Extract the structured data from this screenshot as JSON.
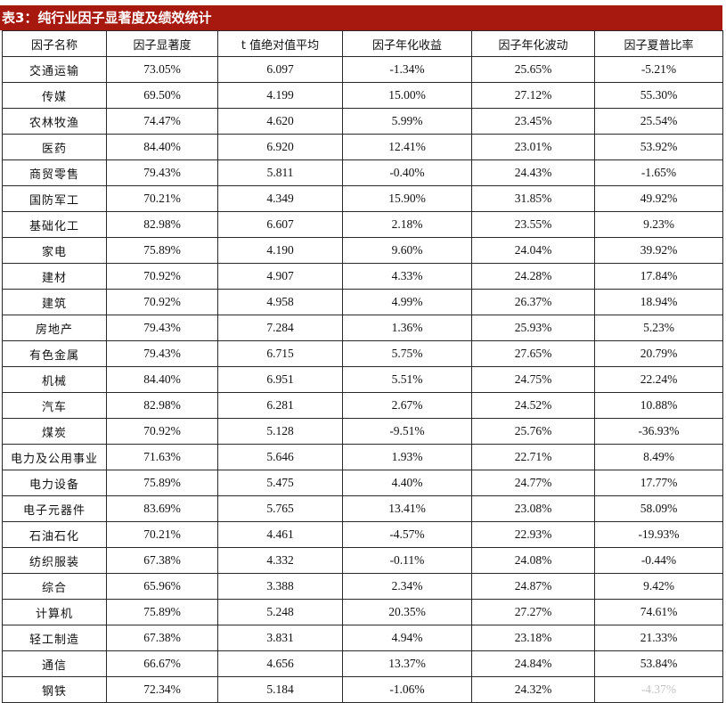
{
  "title": "表3：纯行业因子显著度及绩效统计",
  "headers": [
    "因子名称",
    "因子显著度",
    "t 值绝对值平均",
    "因子年化收益",
    "因子年化波动",
    "因子夏普比率"
  ],
  "rows": [
    [
      "交通运输",
      "73.05%",
      "6.097",
      "-1.34%",
      "25.65%",
      "-5.21%"
    ],
    [
      "传媒",
      "69.50%",
      "4.199",
      "15.00%",
      "27.12%",
      "55.30%"
    ],
    [
      "农林牧渔",
      "74.47%",
      "4.620",
      "5.99%",
      "23.45%",
      "25.54%"
    ],
    [
      "医药",
      "84.40%",
      "6.920",
      "12.41%",
      "23.01%",
      "53.92%"
    ],
    [
      "商贸零售",
      "79.43%",
      "5.811",
      "-0.40%",
      "24.43%",
      "-1.65%"
    ],
    [
      "国防军工",
      "70.21%",
      "4.349",
      "15.90%",
      "31.85%",
      "49.92%"
    ],
    [
      "基础化工",
      "82.98%",
      "6.607",
      "2.18%",
      "23.55%",
      "9.23%"
    ],
    [
      "家电",
      "75.89%",
      "4.190",
      "9.60%",
      "24.04%",
      "39.92%"
    ],
    [
      "建材",
      "70.92%",
      "4.907",
      "4.33%",
      "24.28%",
      "17.84%"
    ],
    [
      "建筑",
      "70.92%",
      "4.958",
      "4.99%",
      "26.37%",
      "18.94%"
    ],
    [
      "房地产",
      "79.43%",
      "7.284",
      "1.36%",
      "25.93%",
      "5.23%"
    ],
    [
      "有色金属",
      "79.43%",
      "6.715",
      "5.75%",
      "27.65%",
      "20.79%"
    ],
    [
      "机械",
      "84.40%",
      "6.951",
      "5.51%",
      "24.75%",
      "22.24%"
    ],
    [
      "汽车",
      "82.98%",
      "6.281",
      "2.67%",
      "24.52%",
      "10.88%"
    ],
    [
      "煤炭",
      "70.92%",
      "5.128",
      "-9.51%",
      "25.76%",
      "-36.93%"
    ],
    [
      "电力及公用事业",
      "71.63%",
      "5.646",
      "1.93%",
      "22.71%",
      "8.49%"
    ],
    [
      "电力设备",
      "75.89%",
      "5.475",
      "4.40%",
      "24.77%",
      "17.77%"
    ],
    [
      "电子元器件",
      "83.69%",
      "5.765",
      "13.41%",
      "23.08%",
      "58.09%"
    ],
    [
      "石油石化",
      "70.21%",
      "4.461",
      "-4.57%",
      "22.93%",
      "-19.93%"
    ],
    [
      "纺织服装",
      "67.38%",
      "4.332",
      "-0.11%",
      "24.08%",
      "-0.44%"
    ],
    [
      "综合",
      "65.96%",
      "3.388",
      "2.34%",
      "24.87%",
      "9.42%"
    ],
    [
      "计算机",
      "75.89%",
      "5.248",
      "20.35%",
      "27.27%",
      "74.61%"
    ],
    [
      "轻工制造",
      "67.38%",
      "3.831",
      "4.94%",
      "23.18%",
      "21.33%"
    ],
    [
      "通信",
      "66.67%",
      "4.656",
      "13.37%",
      "24.84%",
      "53.84%"
    ],
    [
      "钢铁",
      "72.34%",
      "5.184",
      "-1.06%",
      "24.32%",
      "-4.37%"
    ]
  ]
}
